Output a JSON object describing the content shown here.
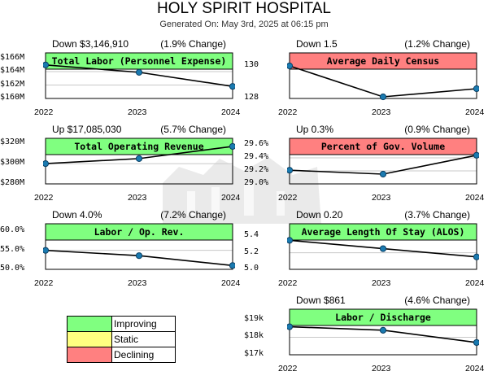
{
  "header": {
    "title": "HOLY SPIRIT HOSPITAL",
    "subtitle": "Generated On: May 3rd, 2025 at 06:15 pm"
  },
  "colors": {
    "improving": "#80ff80",
    "static": "#ffff80",
    "declining": "#ff8080",
    "line": "#000000",
    "marker": "#1a7ab0"
  },
  "legend": {
    "items": [
      {
        "label": "Improving",
        "color": "#80ff80"
      },
      {
        "label": "Static",
        "color": "#ffff80"
      },
      {
        "label": "Declining",
        "color": "#ff8080"
      }
    ]
  },
  "chart_data": [
    {
      "type": "line",
      "title": "Total Labor (Personnel Expense)",
      "status": "improving",
      "change_left": "Down $3,146,910",
      "change_right": "(1.9% Change)",
      "x": [
        "2022",
        "2023",
        "2024"
      ],
      "values": [
        165000000,
        163900000,
        161800000
      ],
      "yticks": [
        166000000,
        164000000,
        162000000,
        160000000
      ],
      "ytick_labels": [
        "$166M",
        "$164M",
        "$162M",
        "$160M"
      ],
      "ylim": [
        160000000,
        166800000
      ]
    },
    {
      "type": "line",
      "title": "Average Daily Census",
      "status": "declining",
      "change_left": "Down 1.5",
      "change_right": "(1.2% Change)",
      "x": [
        "2022",
        "2023",
        "2024"
      ],
      "values": [
        130.0,
        128.1,
        128.6
      ],
      "yticks": [
        130,
        128
      ],
      "ytick_labels": [
        "130",
        "128"
      ],
      "ylim": [
        128,
        130.8
      ]
    },
    {
      "type": "line",
      "title": "Total Operating Revenue",
      "status": "improving",
      "change_left": "Up $17,085,030",
      "change_right": "(5.7% Change)",
      "x": [
        "2022",
        "2023",
        "2024"
      ],
      "values": [
        300000000,
        305000000,
        317000000
      ],
      "yticks": [
        320000000,
        300000000,
        280000000
      ],
      "ytick_labels": [
        "$320M",
        "$300M",
        "$280M"
      ],
      "ylim": [
        280000000,
        325000000
      ]
    },
    {
      "type": "line",
      "title": "Percent of Gov. Volume",
      "status": "declining",
      "change_left": "Up 0.3%",
      "change_right": "(0.9% Change)",
      "x": [
        "2022",
        "2023",
        "2024"
      ],
      "values": [
        29.21,
        29.15,
        29.44
      ],
      "yticks": [
        29.6,
        29.4,
        29.2,
        29.0
      ],
      "ytick_labels": [
        "29.6%",
        "29.4%",
        "29.2%",
        "29.0%"
      ],
      "ylim": [
        29.0,
        29.7
      ]
    },
    {
      "type": "line",
      "title": "Labor / Op. Rev.",
      "status": "improving",
      "change_left": "Down 4.0%",
      "change_right": "(7.2% Change)",
      "x": [
        "2022",
        "2023",
        "2024"
      ],
      "values": [
        55.0,
        53.6,
        51.0
      ],
      "yticks": [
        60.0,
        55.0,
        50.0
      ],
      "ytick_labels": [
        "60.0%",
        "55.0%",
        "50.0%"
      ],
      "ylim": [
        50.0,
        62.0
      ]
    },
    {
      "type": "line",
      "title": "Average Length Of Stay (ALOS)",
      "status": "improving",
      "change_left": "Down 0.20",
      "change_right": "(3.7% Change)",
      "x": [
        "2022",
        "2023",
        "2024"
      ],
      "values": [
        5.35,
        5.25,
        5.15
      ],
      "yticks": [
        5.4,
        5.2,
        5.0
      ],
      "ytick_labels": [
        "5.4",
        "5.2",
        "5.0"
      ],
      "ylim": [
        5.0,
        5.55
      ]
    },
    {
      "type": "line",
      "title": "Labor / Discharge",
      "status": "improving",
      "change_left": "Down $861",
      "change_right": "(4.6% Change)",
      "x": [
        "2022",
        "2023",
        "2024"
      ],
      "values": [
        18600,
        18400,
        17700
      ],
      "yticks": [
        19000,
        18000,
        17000
      ],
      "ytick_labels": [
        "$19k",
        "$18k",
        "$17k"
      ],
      "ylim": [
        17000,
        19600
      ]
    }
  ]
}
